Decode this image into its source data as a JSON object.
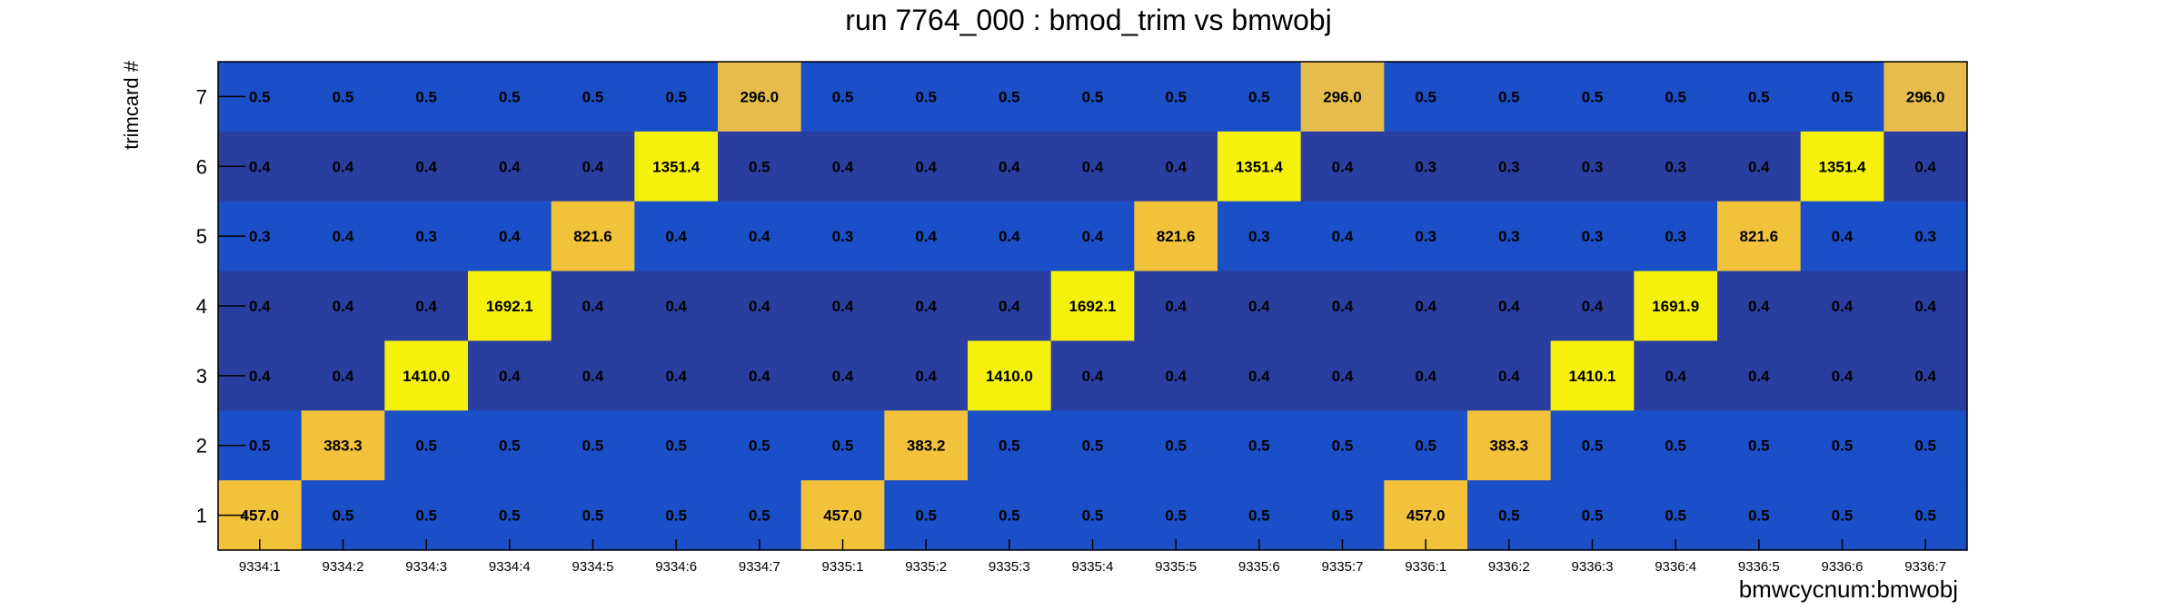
{
  "chart_data": {
    "type": "heatmap",
    "title": "run 7764_000 : bmod_trim vs bmwobj",
    "xlabel": "bmwcycnum:bmwobj",
    "ylabel": "trimcard #",
    "categories": [
      "9334:1",
      "9334:2",
      "9334:3",
      "9334:4",
      "9334:5",
      "9334:6",
      "9334:7",
      "9335:1",
      "9335:2",
      "9335:3",
      "9335:4",
      "9335:5",
      "9335:6",
      "9335:7",
      "9336:1",
      "9336:2",
      "9336:3",
      "9336:4",
      "9336:5",
      "9336:6",
      "9336:7"
    ],
    "y_categories": [
      "1",
      "2",
      "3",
      "4",
      "5",
      "6",
      "7"
    ],
    "rows": [
      {
        "y": "7",
        "values": [
          0.5,
          0.5,
          0.5,
          0.5,
          0.5,
          0.5,
          296.0,
          0.5,
          0.5,
          0.5,
          0.5,
          0.5,
          0.5,
          296.0,
          0.5,
          0.5,
          0.5,
          0.5,
          0.5,
          0.5,
          296.0
        ],
        "labels": [
          "0.5",
          "0.5",
          "0.5",
          "0.5",
          "0.5",
          "0.5",
          "296.0",
          "0.5",
          "0.5",
          "0.5",
          "0.5",
          "0.5",
          "0.5",
          "296.0",
          "0.5",
          "0.5",
          "0.5",
          "0.5",
          "0.5",
          "0.5",
          "296.0"
        ]
      },
      {
        "y": "6",
        "values": [
          0.4,
          0.4,
          0.4,
          0.4,
          0.4,
          1351.4,
          0.5,
          0.4,
          0.4,
          0.4,
          0.4,
          0.4,
          1351.4,
          0.4,
          0.3,
          0.3,
          0.3,
          0.3,
          0.4,
          1351.4,
          0.4
        ],
        "labels": [
          "0.4",
          "0.4",
          "0.4",
          "0.4",
          "0.4",
          "1351.4",
          "0.5",
          "0.4",
          "0.4",
          "0.4",
          "0.4",
          "0.4",
          "1351.4",
          "0.4",
          "0.3",
          "0.3",
          "0.3",
          "0.3",
          "0.4",
          "1351.4",
          "0.4"
        ]
      },
      {
        "y": "5",
        "values": [
          0.3,
          0.4,
          0.3,
          0.4,
          821.6,
          0.4,
          0.4,
          0.3,
          0.4,
          0.4,
          0.4,
          821.6,
          0.3,
          0.4,
          0.3,
          0.3,
          0.3,
          0.3,
          821.6,
          0.4,
          0.3
        ],
        "labels": [
          "0.3",
          "0.4",
          "0.3",
          "0.4",
          "821.6",
          "0.4",
          "0.4",
          "0.3",
          "0.4",
          "0.4",
          "0.4",
          "821.6",
          "0.3",
          "0.4",
          "0.3",
          "0.3",
          "0.3",
          "0.3",
          "821.6",
          "0.4",
          "0.3"
        ]
      },
      {
        "y": "4",
        "values": [
          0.4,
          0.4,
          0.4,
          1692.1,
          0.4,
          0.4,
          0.4,
          0.4,
          0.4,
          0.4,
          1692.1,
          0.4,
          0.4,
          0.4,
          0.4,
          0.4,
          0.4,
          1691.9,
          0.4,
          0.4,
          0.4
        ],
        "labels": [
          "0.4",
          "0.4",
          "0.4",
          "1692.1",
          "0.4",
          "0.4",
          "0.4",
          "0.4",
          "0.4",
          "0.4",
          "1692.1",
          "0.4",
          "0.4",
          "0.4",
          "0.4",
          "0.4",
          "0.4",
          "1691.9",
          "0.4",
          "0.4",
          "0.4"
        ]
      },
      {
        "y": "3",
        "values": [
          0.4,
          0.4,
          1410.0,
          0.4,
          0.4,
          0.4,
          0.4,
          0.4,
          0.4,
          1410.0,
          0.4,
          0.4,
          0.4,
          0.4,
          0.4,
          0.4,
          1410.1,
          0.4,
          0.4,
          0.4,
          0.4
        ],
        "labels": [
          "0.4",
          "0.4",
          "1410.0",
          "0.4",
          "0.4",
          "0.4",
          "0.4",
          "0.4",
          "0.4",
          "1410.0",
          "0.4",
          "0.4",
          "0.4",
          "0.4",
          "0.4",
          "0.4",
          "1410.1",
          "0.4",
          "0.4",
          "0.4",
          "0.4"
        ]
      },
      {
        "y": "2",
        "values": [
          0.5,
          383.3,
          0.5,
          0.5,
          0.5,
          0.5,
          0.5,
          0.5,
          383.2,
          0.5,
          0.5,
          0.5,
          0.5,
          0.5,
          0.5,
          383.3,
          0.5,
          0.5,
          0.5,
          0.5,
          0.5
        ],
        "labels": [
          "0.5",
          "383.3",
          "0.5",
          "0.5",
          "0.5",
          "0.5",
          "0.5",
          "0.5",
          "383.2",
          "0.5",
          "0.5",
          "0.5",
          "0.5",
          "0.5",
          "0.5",
          "383.3",
          "0.5",
          "0.5",
          "0.5",
          "0.5",
          "0.5"
        ]
      },
      {
        "y": "1",
        "values": [
          457.0,
          0.5,
          0.5,
          0.5,
          0.5,
          0.5,
          0.5,
          457.0,
          0.5,
          0.5,
          0.5,
          0.5,
          0.5,
          0.5,
          457.0,
          0.5,
          0.5,
          0.5,
          0.5,
          0.5,
          0.5
        ],
        "labels": [
          "457.0",
          "0.5",
          "0.5",
          "0.5",
          "0.5",
          "0.5",
          "0.5",
          "457.0",
          "0.5",
          "0.5",
          "0.5",
          "0.5",
          "0.5",
          "0.5",
          "457.0",
          "0.5",
          "0.5",
          "0.5",
          "0.5",
          "0.5",
          "0.5"
        ]
      }
    ],
    "colors": {
      "low": "#2a3ea0",
      "row_highlight": "#1a4fc8",
      "mid": "#e6bd4c",
      "midhigh": "#f2c23a",
      "high": "#f5f10c",
      "frame": "#000000"
    },
    "grid": false
  }
}
